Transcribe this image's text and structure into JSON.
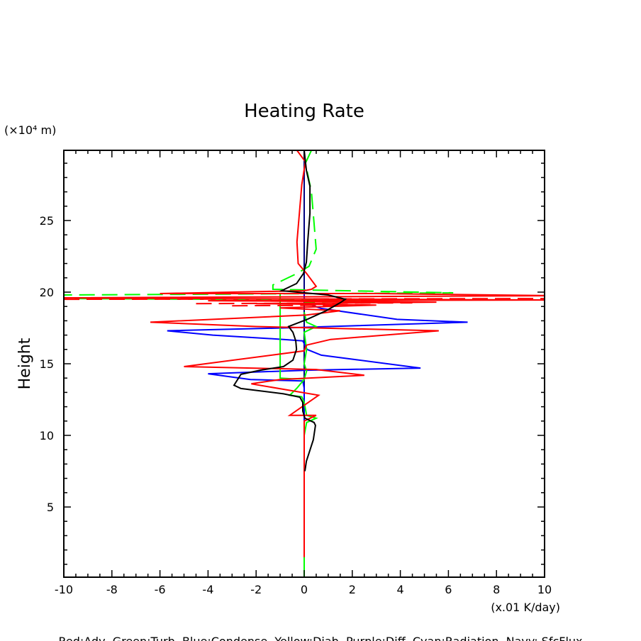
{
  "chart_data": {
    "type": "line",
    "title": "Heating Rate",
    "xlabel": "(x.01 K/day)",
    "ylabel": "Height",
    "yunit": "(×10⁴ m)",
    "xlim": [
      -10,
      10
    ],
    "ylim": [
      0.1,
      29.9
    ],
    "xticks": [
      -10,
      -8,
      -6,
      -4,
      -2,
      0,
      2,
      4,
      6,
      8,
      10
    ],
    "yticks": [
      5,
      10,
      15,
      20,
      25
    ],
    "grid": false,
    "legend_note": "Red:Adv  Green:Turb  Blue:Condense  Yellow:Diab  Purple:Diff  Cyan:Radiation  Navy: SfcFlux",
    "series": [
      {
        "color": "#000080",
        "dash": false,
        "segments": [
          [
            [
              0,
              29.9
            ],
            [
              0,
              1.8
            ]
          ]
        ]
      },
      {
        "color": "#0000ff",
        "dash": false,
        "segments": [
          [
            [
              0,
              20.0
            ],
            [
              0,
              19.4
            ],
            [
              0.12,
              19.2
            ],
            [
              0.71,
              18.86
            ],
            [
              3.86,
              18.1
            ],
            [
              6.8,
              17.9
            ],
            [
              -0.86,
              17.5
            ],
            [
              -5.7,
              17.3
            ],
            [
              -3.8,
              17.0
            ],
            [
              -0.86,
              16.7
            ],
            [
              -0.06,
              16.6
            ],
            [
              0.12,
              16.0
            ],
            [
              0.71,
              15.6
            ],
            [
              4.84,
              14.7
            ],
            [
              0.12,
              14.55
            ],
            [
              -4.0,
              14.3
            ],
            [
              -2.24,
              13.9
            ],
            [
              -0.06,
              13.8
            ],
            [
              0,
              13.3
            ],
            [
              0,
              10.5
            ]
          ]
        ]
      },
      {
        "color": "#00ff00",
        "dash": true,
        "segments": [
          [
            [
              0.3,
              29.9
            ],
            [
              0.05,
              29.0
            ],
            [
              0.3,
              27.0
            ],
            [
              0.4,
              25.0
            ],
            [
              0.5,
              23.0
            ],
            [
              0.2,
              21.8
            ],
            [
              -0.3,
              21.3
            ],
            [
              -1.3,
              20.5
            ],
            [
              -1.3,
              20.2
            ],
            [
              6.2,
              19.95
            ],
            [
              -10,
              19.8
            ],
            [
              -10,
              19.55
            ],
            [
              3,
              19.45
            ],
            [
              0,
              19.3
            ]
          ]
        ]
      },
      {
        "color": "#00ff00",
        "dash": false,
        "segments": [
          [
            [
              -1.0,
              19.9
            ],
            [
              -1.0,
              14.0
            ],
            [
              -0.5,
              13.95
            ],
            [
              0,
              13.95
            ]
          ],
          [
            [
              0,
              18.6
            ],
            [
              0.1,
              17.9
            ],
            [
              0.5,
              17.6
            ],
            [
              0,
              17.2
            ],
            [
              0.1,
              16.0
            ],
            [
              0,
              15.0
            ],
            [
              0.1,
              14.5
            ],
            [
              0,
              13.9
            ],
            [
              -0.3,
              13.3
            ],
            [
              -0.6,
              12.8
            ],
            [
              -0.1,
              12.7
            ],
            [
              0,
              12.3
            ],
            [
              0.1,
              11.4
            ],
            [
              0.5,
              11.2
            ],
            [
              0.1,
              10.9
            ],
            [
              0,
              10.0
            ],
            [
              0,
              0.1
            ]
          ]
        ]
      },
      {
        "color": "#ff0000",
        "dash": true,
        "segments": [
          [
            [
              -10,
              19.5
            ],
            [
              10,
              19.55
            ]
          ],
          [
            [
              -4.5,
              19.2
            ],
            [
              4.5,
              19.25
            ]
          ],
          [
            [
              -3,
              19.05
            ],
            [
              2.5,
              19.1
            ]
          ]
        ]
      },
      {
        "color": "#ff0000",
        "dash": false,
        "segments": [
          [
            [
              -0.3,
              29.9
            ],
            [
              0.05,
              29.1
            ],
            [
              -0.1,
              27.5
            ],
            [
              -0.2,
              25.5
            ],
            [
              -0.3,
              23.5
            ],
            [
              -0.25,
              22.0
            ],
            [
              0.1,
              21.3
            ],
            [
              0.5,
              20.4
            ],
            [
              0.3,
              20.2
            ],
            [
              0,
              20.1
            ],
            [
              -6,
              19.9
            ],
            [
              3,
              19.9
            ],
            [
              10.5,
              19.75
            ],
            [
              -10.5,
              19.6
            ],
            [
              10.5,
              19.45
            ],
            [
              -4,
              19.4
            ],
            [
              5.5,
              19.3
            ],
            [
              -2,
              19.2
            ],
            [
              3,
              19.1
            ],
            [
              -1,
              18.9
            ],
            [
              1.5,
              18.7
            ],
            [
              0.1,
              18.4
            ],
            [
              -6.4,
              17.9
            ],
            [
              -2,
              17.6
            ],
            [
              5.6,
              17.3
            ],
            [
              1.1,
              16.7
            ],
            [
              0.1,
              16.3
            ],
            [
              0,
              15.9
            ],
            [
              -5.0,
              14.8
            ],
            [
              0.5,
              14.6
            ],
            [
              2.5,
              14.2
            ],
            [
              -1,
              13.9
            ],
            [
              -2.2,
              13.6
            ],
            [
              0.6,
              12.8
            ],
            [
              -0.6,
              11.4
            ],
            [
              0.5,
              11.4
            ],
            [
              0,
              11.0
            ],
            [
              0,
              1.5
            ]
          ]
        ]
      },
      {
        "color": "#000000",
        "dash": false,
        "segments": [
          [
            [
              0,
              29.9
            ],
            [
              0.09,
              28.5
            ],
            [
              0.24,
              27.4
            ],
            [
              0.24,
              25.5
            ],
            [
              0.15,
              23.6
            ],
            [
              0.09,
              22.1
            ],
            [
              -0.03,
              21.3
            ],
            [
              -0.32,
              20.6
            ],
            [
              -0.94,
              20.1
            ],
            [
              1.0,
              19.8
            ],
            [
              1.71,
              19.5
            ],
            [
              1.5,
              19.26
            ],
            [
              0.91,
              18.7
            ],
            [
              0.12,
              18.1
            ],
            [
              -0.65,
              17.6
            ],
            [
              -0.47,
              17.2
            ],
            [
              -0.35,
              16.6
            ],
            [
              -0.32,
              16.0
            ],
            [
              -0.47,
              15.25
            ],
            [
              -0.86,
              14.8
            ],
            [
              -1.83,
              14.55
            ],
            [
              -2.63,
              14.26
            ],
            [
              -2.92,
              13.5
            ],
            [
              -2.63,
              13.27
            ],
            [
              -0.86,
              12.9
            ],
            [
              -0.18,
              12.67
            ],
            [
              -0.06,
              12.3
            ],
            [
              -0.06,
              11.7
            ],
            [
              0.03,
              11.2
            ],
            [
              0.41,
              10.9
            ],
            [
              0.47,
              10.7
            ],
            [
              0.38,
              9.7
            ],
            [
              0.09,
              8.2
            ],
            [
              0.03,
              7.5
            ]
          ]
        ]
      }
    ]
  }
}
